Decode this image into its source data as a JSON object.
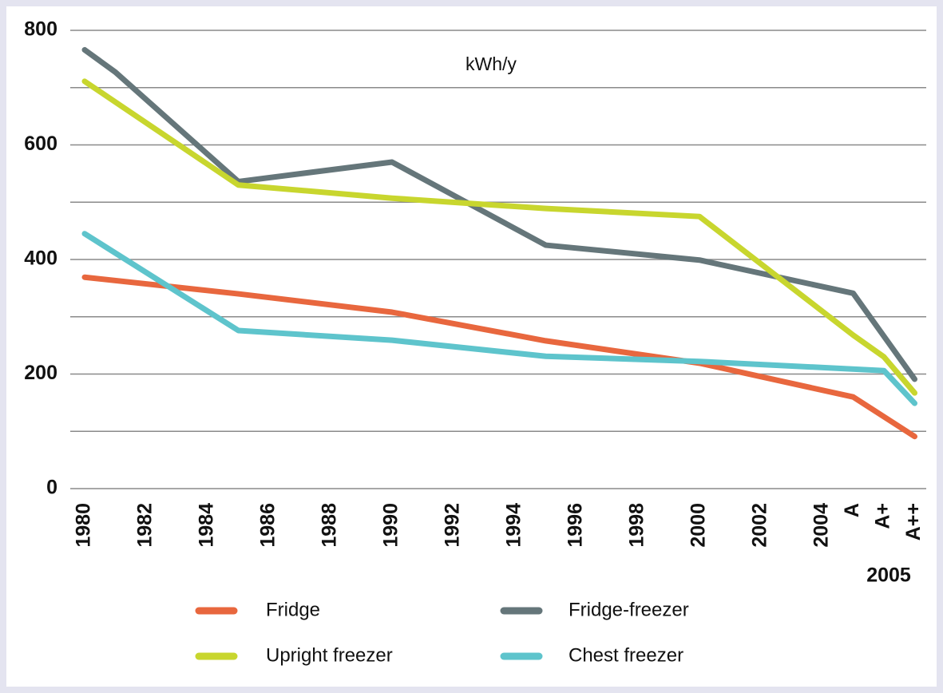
{
  "chart_data": {
    "type": "line",
    "title": "kWh/y",
    "x_group_label": "2005",
    "xlim": [
      0,
      27
    ],
    "xticks": [
      {
        "value": 0,
        "label": "1980"
      },
      {
        "value": 2,
        "label": "1982"
      },
      {
        "value": 4,
        "label": "1984"
      },
      {
        "value": 6,
        "label": "1986"
      },
      {
        "value": 8,
        "label": "1988"
      },
      {
        "value": 10,
        "label": "1990"
      },
      {
        "value": 12,
        "label": "1992"
      },
      {
        "value": 14,
        "label": "1994"
      },
      {
        "value": 16,
        "label": "1996"
      },
      {
        "value": 18,
        "label": "1998"
      },
      {
        "value": 20,
        "label": "2000"
      },
      {
        "value": 22,
        "label": "2002"
      },
      {
        "value": 24,
        "label": "2004"
      },
      {
        "value": 25,
        "label": "A"
      },
      {
        "value": 26,
        "label": "A+"
      },
      {
        "value": 27,
        "label": "A++"
      }
    ],
    "ylim": [
      0,
      800
    ],
    "yticks": [
      0,
      200,
      400,
      600,
      800
    ],
    "minor_yticks": [
      100,
      300,
      500,
      700
    ],
    "grid": true,
    "series": [
      {
        "name": "Fridge",
        "color": "#e8673e",
        "x": [
          0,
          5,
          10,
          15,
          20,
          25,
          27
        ],
        "values": [
          369,
          340,
          308,
          258,
          219,
          160,
          91
        ]
      },
      {
        "name": "Fridge-freezer",
        "color": "#65767a",
        "x": [
          0,
          1,
          5,
          10,
          15,
          20,
          25,
          27
        ],
        "values": [
          766,
          727,
          536,
          570,
          425,
          399,
          341,
          191
        ]
      },
      {
        "name": "Upright freezer",
        "color": "#c8d62e",
        "x": [
          0,
          5,
          10,
          15,
          20,
          25,
          26,
          27
        ],
        "values": [
          711,
          530,
          507,
          489,
          475,
          268,
          230,
          167
        ]
      },
      {
        "name": "Chest freezer",
        "color": "#5ec4cc",
        "x": [
          0,
          5,
          10,
          15,
          20,
          26,
          27
        ],
        "values": [
          445,
          276,
          259,
          231,
          222,
          206,
          149
        ]
      }
    ]
  }
}
